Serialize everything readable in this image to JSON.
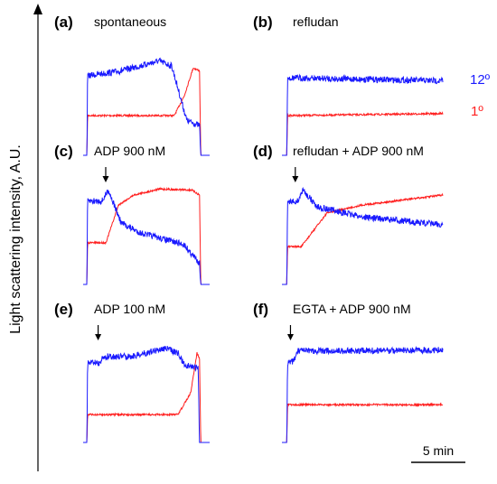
{
  "y_axis_label": "Light scattering intensity, A.U.",
  "panels": [
    {
      "label": "(a)",
      "title": "spontaneous"
    },
    {
      "label": "(b)",
      "title": "refludan"
    },
    {
      "label": "(c)",
      "title": "ADP 900 nM"
    },
    {
      "label": "(d)",
      "title": "refludan + ADP 900 nM"
    },
    {
      "label": "(e)",
      "title": "ADP 100 nM"
    },
    {
      "label": "(f)",
      "title": "EGTA + ADP 900 nM"
    }
  ],
  "legend": [
    {
      "name": "12º",
      "color": "#1a1aff"
    },
    {
      "name": "1º",
      "color": "#ff2020"
    }
  ],
  "scale_bar": "5 min"
}
